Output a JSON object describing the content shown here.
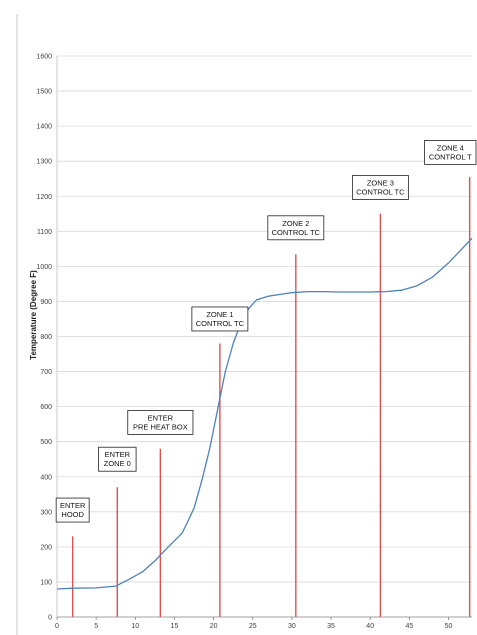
{
  "chart_data": {
    "type": "line",
    "title": "",
    "xlabel": "",
    "ylabel": "Temperature (Degree F)",
    "xlim": [
      0,
      53
    ],
    "ylim": [
      0,
      1600
    ],
    "x_ticks": [
      0,
      5,
      10,
      15,
      20,
      25,
      30,
      35,
      40,
      45,
      50
    ],
    "y_ticks": [
      0,
      100,
      200,
      300,
      400,
      500,
      600,
      700,
      800,
      900,
      1000,
      1100,
      1200,
      1300,
      1400,
      1500,
      1600
    ],
    "grid": true,
    "legend": "none",
    "colors": {
      "series": "#4f81bd",
      "markers": "#d9534f",
      "grid": "#d9d9d9"
    },
    "series": [
      {
        "x": [
          0,
          2,
          5,
          7.5,
          9,
          11,
          12.5,
          14,
          16,
          17.5,
          18.5,
          19.5,
          20.5,
          21.5,
          22.5,
          23.5,
          24.5,
          25.5,
          27,
          28.5,
          30,
          32,
          34,
          36,
          38,
          40,
          42,
          44,
          46,
          48,
          50,
          51.5,
          53
        ],
        "y": [
          80,
          82,
          83,
          88,
          105,
          130,
          160,
          195,
          240,
          310,
          390,
          480,
          590,
          700,
          780,
          840,
          880,
          905,
          915,
          920,
          925,
          928,
          928,
          927,
          927,
          927,
          928,
          932,
          945,
          970,
          1010,
          1045,
          1080
        ]
      }
    ],
    "annotations": [
      {
        "lines": [
          "ENTER",
          "HOOD"
        ],
        "x": 2,
        "y_top": 230,
        "label_y": 305
      },
      {
        "lines": [
          "ENTER",
          "ZONE 0"
        ],
        "x": 7.7,
        "y_top": 370,
        "label_y": 450
      },
      {
        "lines": [
          "ENTER",
          "PRE HEAT BOX"
        ],
        "x": 13.2,
        "y_top": 480,
        "label_y": 555
      },
      {
        "lines": [
          "ZONE 1",
          "CONTROL TC"
        ],
        "x": 20.8,
        "y_top": 780,
        "label_y": 850
      },
      {
        "lines": [
          "ZONE 2",
          "CONTROL TC"
        ],
        "x": 30.5,
        "y_top": 1035,
        "label_y": 1110
      },
      {
        "lines": [
          "ZONE 3",
          "CONTROL TC"
        ],
        "x": 41.3,
        "y_top": 1150,
        "label_y": 1225
      },
      {
        "lines": [
          "ZONE 4",
          "CONTROL T"
        ],
        "x": 52.7,
        "y_top": 1255,
        "label_y": 1325
      }
    ]
  }
}
